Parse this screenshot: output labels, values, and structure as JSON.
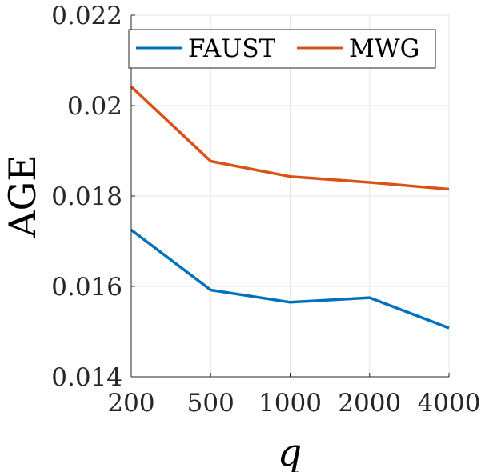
{
  "chart_data": {
    "type": "line",
    "title": "",
    "xlabel": "q",
    "ylabel": "AGE",
    "categories": [
      "200",
      "500",
      "1000",
      "2000",
      "4000"
    ],
    "ylim": [
      0.014,
      0.022
    ],
    "yticks": [
      "0.014",
      "0.016",
      "0.018",
      "0.02",
      "0.022"
    ],
    "ytick_values": [
      0.014,
      0.016,
      0.018,
      0.02,
      0.022
    ],
    "grid": true,
    "legend_position": "top",
    "legend_orientation": "horizontal",
    "series": [
      {
        "name": "FAUST",
        "color": "#0072BD",
        "values": [
          0.01725,
          0.01592,
          0.01565,
          0.01575,
          0.01508
        ]
      },
      {
        "name": "MWG",
        "color": "#D95319",
        "values": [
          0.02042,
          0.01877,
          0.01843,
          0.0183,
          0.01815
        ]
      }
    ]
  }
}
